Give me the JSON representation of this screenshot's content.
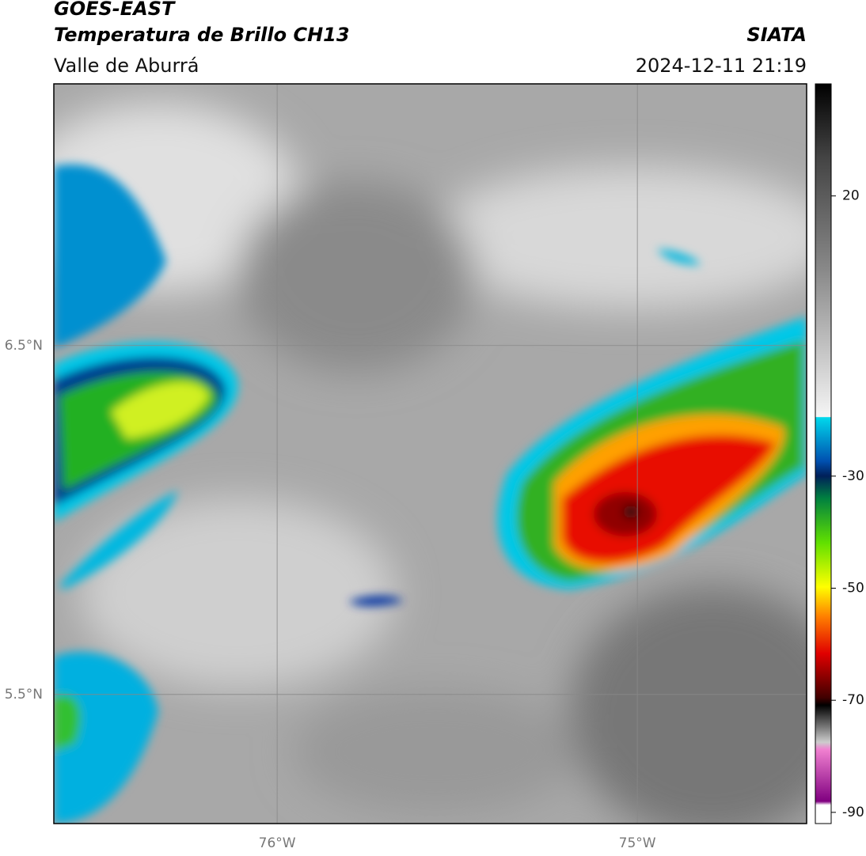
{
  "header": {
    "source": "GOES-EAST",
    "product": "Temperatura de Brillo CH13",
    "region": "Valle de Aburrá",
    "agency": "SIATA",
    "datetime": "2024-12-11 21:19"
  },
  "map": {
    "lonlim": [
      -76.62,
      -74.53
    ],
    "latlim": [
      5.13,
      7.25
    ],
    "lonticks": [
      {
        "value": -76,
        "label": "76°W"
      },
      {
        "value": -75,
        "label": "75°W"
      }
    ],
    "latticks": [
      {
        "value": 6.5,
        "label": "6.5°N"
      },
      {
        "value": 5.5,
        "label": "5.5°N"
      }
    ]
  },
  "colorbar": {
    "lim": [
      -92,
      40
    ],
    "ticks": [
      20,
      -30,
      -50,
      -70,
      -90
    ]
  }
}
